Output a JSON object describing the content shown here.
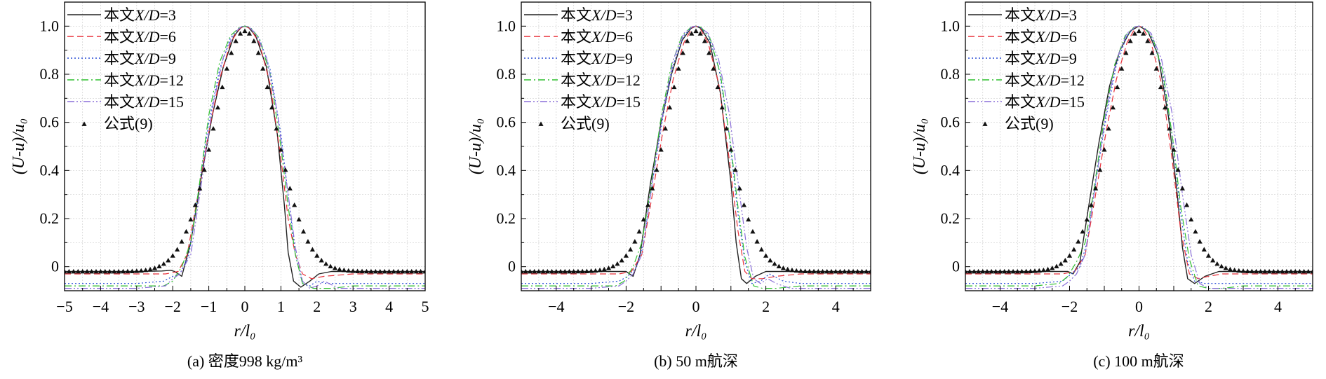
{
  "figure": {
    "legend_labels": [
      {
        "prefix": "本文",
        "var": "X/D",
        "eq": "=3",
        "line": "solid"
      },
      {
        "prefix": "本文",
        "var": "X/D",
        "eq": "=6",
        "line": "dashed"
      },
      {
        "prefix": "本文",
        "var": "X/D",
        "eq": "=9",
        "line": "dotted"
      },
      {
        "prefix": "本文",
        "var": "X/D",
        "eq": "=12",
        "line": "dashdot"
      },
      {
        "prefix": "本文",
        "var": "X/D",
        "eq": "=15",
        "line": "dashdotdot"
      },
      {
        "prefix": "公式(9)",
        "var": "",
        "eq": "",
        "line": "markers"
      }
    ],
    "colors": {
      "X/D=3": "#222222",
      "X/D=6": "#e8303a",
      "X/D=9": "#2a4fd6",
      "X/D=12": "#2fbf2f",
      "X/D=15": "#8a6fd8",
      "formula": "#111111",
      "grid": "#cfcfcf"
    }
  },
  "chart_data": [
    {
      "type": "line",
      "caption": "(a) 密度998 kg/m³",
      "xlabel": "r/l₀",
      "ylabel": "(U-u)/u₀",
      "xlim": [
        -5,
        5
      ],
      "ylim": [
        -0.1,
        1.1
      ],
      "xticks": [
        -5,
        -4,
        -3,
        -2,
        -1,
        0,
        1,
        2,
        3,
        4,
        5
      ],
      "yticks": [
        0,
        0.2,
        0.4,
        0.6,
        0.8,
        1.0
      ],
      "ytick_labels": [
        "0",
        "0.2",
        "0.4",
        "0.6",
        "0.8",
        "1.0"
      ],
      "grid": true,
      "legend_position": "top-left",
      "series": [
        {
          "name": "本文X/D=3",
          "x": [
            -5,
            -3,
            -2.3,
            -2.05,
            -1.95,
            -1.75,
            -1.5,
            -1.2,
            -0.9,
            -0.6,
            -0.3,
            -0.1,
            0,
            0.1,
            0.3,
            0.6,
            0.9,
            1.1,
            1.2,
            1.35,
            1.55,
            1.8,
            2.05,
            2.4,
            3,
            5
          ],
          "y": [
            -0.02,
            -0.02,
            -0.018,
            -0.015,
            -0.02,
            -0.04,
            0.1,
            0.38,
            0.63,
            0.83,
            0.96,
            0.995,
            1.0,
            0.995,
            0.96,
            0.83,
            0.55,
            0.25,
            0.06,
            -0.06,
            -0.085,
            -0.06,
            -0.03,
            -0.02,
            -0.02,
            -0.02
          ]
        },
        {
          "name": "本文X/D=6",
          "x": [
            -5,
            -3,
            -2.2,
            -1.85,
            -1.6,
            -1.3,
            -1.0,
            -0.7,
            -0.4,
            -0.15,
            0,
            0.15,
            0.4,
            0.7,
            1.0,
            1.2,
            1.4,
            1.6,
            1.85,
            2.2,
            3,
            5
          ],
          "y": [
            -0.03,
            -0.03,
            -0.03,
            -0.02,
            0.05,
            0.3,
            0.56,
            0.78,
            0.93,
            0.99,
            1.0,
            0.99,
            0.93,
            0.76,
            0.45,
            0.2,
            0.05,
            -0.03,
            -0.05,
            -0.04,
            -0.03,
            -0.03
          ]
        },
        {
          "name": "本文X/D=9",
          "x": [
            -5,
            -3,
            -2.25,
            -2.0,
            -1.8,
            -1.55,
            -1.3,
            -1.0,
            -0.7,
            -0.4,
            -0.15,
            0,
            0.15,
            0.4,
            0.7,
            1.0,
            1.2,
            1.4,
            1.6,
            1.8,
            2.0,
            2.25,
            3,
            5
          ],
          "y": [
            -0.07,
            -0.07,
            -0.06,
            -0.04,
            -0.03,
            0.05,
            0.3,
            0.6,
            0.82,
            0.95,
            0.995,
            1.0,
            0.995,
            0.95,
            0.82,
            0.55,
            0.3,
            0.05,
            -0.07,
            -0.08,
            -0.06,
            -0.07,
            -0.07,
            -0.07
          ]
        },
        {
          "name": "本文X/D=12",
          "x": [
            -5,
            -3,
            -2.25,
            -2.0,
            -1.75,
            -1.5,
            -1.3,
            -1.0,
            -0.7,
            -0.4,
            -0.15,
            0,
            0.15,
            0.4,
            0.7,
            1.0,
            1.2,
            1.4,
            1.6,
            1.9,
            2.4,
            3,
            5
          ],
          "y": [
            -0.08,
            -0.08,
            -0.08,
            -0.06,
            0.0,
            0.1,
            0.3,
            0.63,
            0.85,
            0.96,
            0.995,
            1.0,
            0.995,
            0.95,
            0.8,
            0.5,
            0.25,
            0.05,
            -0.07,
            -0.09,
            -0.09,
            -0.08,
            -0.08
          ]
        },
        {
          "name": "本文X/D=15",
          "x": [
            -5,
            -3,
            -2.2,
            -2.0,
            -1.8,
            -1.5,
            -1.2,
            -0.9,
            -0.6,
            -0.3,
            -0.1,
            0,
            0.1,
            0.3,
            0.6,
            0.9,
            1.2,
            1.4,
            1.6,
            1.8,
            2.0,
            2.2,
            2.6,
            3,
            5
          ],
          "y": [
            -0.09,
            -0.09,
            -0.08,
            -0.05,
            -0.03,
            0.05,
            0.35,
            0.66,
            0.87,
            0.97,
            0.998,
            1.0,
            0.998,
            0.97,
            0.87,
            0.64,
            0.3,
            0.08,
            -0.06,
            -0.09,
            -0.08,
            -0.06,
            -0.09,
            -0.09,
            -0.09
          ]
        },
        {
          "name": "公式(9)",
          "marker": "triangle",
          "formula": {
            "a": 0.68,
            "b": 0.02
          }
        }
      ]
    },
    {
      "type": "line",
      "caption": "(b) 50 m航深",
      "xlabel": "r/l₀",
      "ylabel": "(U-u)/u₀",
      "xlim": [
        -5,
        5
      ],
      "ylim": [
        -0.1,
        1.1
      ],
      "xticks": [
        -4,
        -2,
        0,
        2,
        4
      ],
      "yticks": [
        0,
        0.2,
        0.4,
        0.6,
        0.8,
        1.0
      ],
      "ytick_labels": [
        "0",
        "0.2",
        "0.4",
        "0.6",
        "0.8",
        "1.0"
      ],
      "grid": true,
      "legend_position": "top-left",
      "series": [
        {
          "name": "本文X/D=3",
          "x": [
            -5,
            -3,
            -2.3,
            -2.0,
            -1.8,
            -1.6,
            -1.3,
            -1.0,
            -0.7,
            -0.4,
            -0.15,
            0,
            0.15,
            0.4,
            0.7,
            1.0,
            1.15,
            1.3,
            1.45,
            1.7,
            2.0,
            2.4,
            3,
            5
          ],
          "y": [
            -0.02,
            -0.02,
            -0.02,
            -0.02,
            -0.04,
            0.05,
            0.35,
            0.6,
            0.8,
            0.94,
            0.99,
            1.0,
            0.99,
            0.93,
            0.72,
            0.35,
            0.1,
            -0.05,
            -0.07,
            -0.04,
            -0.02,
            -0.02,
            -0.02,
            -0.02
          ]
        },
        {
          "name": "本文X/D=6",
          "x": [
            -5,
            -3,
            -2.2,
            -1.85,
            -1.55,
            -1.25,
            -0.95,
            -0.65,
            -0.35,
            -0.1,
            0,
            0.1,
            0.35,
            0.65,
            0.95,
            1.2,
            1.4,
            1.6,
            1.9,
            2.3,
            3,
            5
          ],
          "y": [
            -0.03,
            -0.03,
            -0.03,
            -0.02,
            0.05,
            0.3,
            0.56,
            0.78,
            0.93,
            0.995,
            1.0,
            0.995,
            0.93,
            0.76,
            0.45,
            0.15,
            -0.02,
            -0.05,
            -0.05,
            -0.04,
            -0.03,
            -0.03
          ]
        },
        {
          "name": "本文X/D=9",
          "x": [
            -5,
            -3,
            -2.2,
            -1.95,
            -1.7,
            -1.5,
            -1.25,
            -0.95,
            -0.65,
            -0.35,
            -0.1,
            0,
            0.1,
            0.35,
            0.65,
            0.95,
            1.2,
            1.4,
            1.6,
            1.85,
            2.1,
            2.5,
            3,
            5
          ],
          "y": [
            -0.07,
            -0.07,
            -0.06,
            -0.04,
            0.0,
            0.1,
            0.35,
            0.62,
            0.84,
            0.96,
            0.998,
            1.0,
            0.998,
            0.96,
            0.83,
            0.55,
            0.22,
            0.02,
            -0.07,
            -0.06,
            -0.03,
            -0.06,
            -0.07,
            -0.07
          ]
        },
        {
          "name": "本文X/D=12",
          "x": [
            -5,
            -3,
            -2.3,
            -2.05,
            -1.8,
            -1.55,
            -1.3,
            -1.0,
            -0.7,
            -0.4,
            -0.15,
            0,
            0.15,
            0.4,
            0.7,
            1.0,
            1.2,
            1.4,
            1.65,
            1.9,
            2.3,
            3,
            5
          ],
          "y": [
            -0.08,
            -0.08,
            -0.08,
            -0.06,
            0.0,
            0.1,
            0.32,
            0.62,
            0.84,
            0.96,
            0.995,
            1.0,
            0.995,
            0.95,
            0.8,
            0.5,
            0.25,
            0.04,
            -0.08,
            -0.09,
            -0.09,
            -0.08,
            -0.08
          ]
        },
        {
          "name": "本文X/D=15",
          "x": [
            -5,
            -3,
            -2.2,
            -2.0,
            -1.8,
            -1.55,
            -1.25,
            -0.95,
            -0.65,
            -0.35,
            -0.1,
            0,
            0.1,
            0.35,
            0.65,
            0.95,
            1.25,
            1.45,
            1.65,
            1.85,
            2.05,
            2.3,
            2.7,
            3,
            5
          ],
          "y": [
            -0.09,
            -0.09,
            -0.08,
            -0.06,
            -0.03,
            0.05,
            0.35,
            0.64,
            0.86,
            0.97,
            0.998,
            1.0,
            0.998,
            0.97,
            0.86,
            0.64,
            0.3,
            0.08,
            -0.05,
            -0.07,
            -0.05,
            -0.07,
            -0.09,
            -0.09,
            -0.09
          ]
        },
        {
          "name": "公式(9)",
          "marker": "triangle",
          "formula": {
            "a": 0.68,
            "b": 0.02
          }
        }
      ]
    },
    {
      "type": "line",
      "caption": "(c) 100 m航深",
      "xlabel": "r/l₀",
      "ylabel": "(U-u)/u₀",
      "xlim": [
        -5,
        5
      ],
      "ylim": [
        -0.1,
        1.1
      ],
      "xticks": [
        -4,
        -2,
        0,
        2,
        4
      ],
      "yticks": [
        0,
        0.2,
        0.4,
        0.6,
        0.8,
        1.0
      ],
      "ytick_labels": [
        "0",
        "0.2",
        "0.4",
        "0.6",
        "0.8",
        "1.0"
      ],
      "grid": true,
      "legend_position": "top-left",
      "series": [
        {
          "name": "本文X/D=3",
          "x": [
            -5,
            -3,
            -2.3,
            -2.05,
            -1.9,
            -1.7,
            -1.45,
            -1.15,
            -0.85,
            -0.55,
            -0.25,
            0,
            0.25,
            0.55,
            0.85,
            1.1,
            1.25,
            1.4,
            1.6,
            1.9,
            2.3,
            3,
            5
          ],
          "y": [
            -0.02,
            -0.02,
            -0.02,
            -0.02,
            -0.03,
            0.02,
            0.25,
            0.52,
            0.75,
            0.9,
            0.98,
            1.0,
            0.98,
            0.88,
            0.62,
            0.3,
            0.08,
            -0.05,
            -0.07,
            -0.04,
            -0.02,
            -0.02,
            -0.02
          ]
        },
        {
          "name": "本文X/D=6",
          "x": [
            -5,
            -3,
            -2.2,
            -1.85,
            -1.55,
            -1.25,
            -0.95,
            -0.65,
            -0.35,
            -0.1,
            0,
            0.1,
            0.35,
            0.65,
            0.95,
            1.2,
            1.45,
            1.7,
            2.0,
            2.4,
            3,
            5
          ],
          "y": [
            -0.03,
            -0.03,
            -0.03,
            -0.02,
            0.05,
            0.3,
            0.56,
            0.78,
            0.93,
            0.995,
            1.0,
            0.995,
            0.93,
            0.76,
            0.45,
            0.15,
            -0.03,
            -0.05,
            -0.04,
            -0.03,
            -0.03,
            -0.03
          ]
        },
        {
          "name": "本文X/D=9",
          "x": [
            -5,
            -3,
            -2.2,
            -1.95,
            -1.7,
            -1.5,
            -1.25,
            -0.95,
            -0.65,
            -0.35,
            -0.1,
            0,
            0.1,
            0.35,
            0.65,
            0.95,
            1.2,
            1.4,
            1.6,
            1.9,
            2.3,
            3,
            5
          ],
          "y": [
            -0.07,
            -0.07,
            -0.06,
            -0.03,
            0.0,
            0.1,
            0.35,
            0.62,
            0.84,
            0.96,
            0.998,
            1.0,
            0.998,
            0.96,
            0.83,
            0.55,
            0.22,
            0.02,
            -0.06,
            -0.07,
            -0.07,
            -0.07,
            -0.07
          ]
        },
        {
          "name": "本文X/D=12",
          "x": [
            -5,
            -3,
            -2.3,
            -2.05,
            -1.8,
            -1.55,
            -1.3,
            -1.0,
            -0.7,
            -0.4,
            -0.15,
            0,
            0.15,
            0.4,
            0.7,
            1.0,
            1.2,
            1.45,
            1.7,
            2.0,
            2.4,
            3,
            5
          ],
          "y": [
            -0.08,
            -0.08,
            -0.07,
            -0.04,
            0.02,
            0.1,
            0.32,
            0.62,
            0.84,
            0.96,
            0.995,
            1.0,
            0.995,
            0.95,
            0.8,
            0.5,
            0.25,
            0.03,
            -0.08,
            -0.09,
            -0.09,
            -0.08,
            -0.08
          ]
        },
        {
          "name": "本文X/D=15",
          "x": [
            -5,
            -3,
            -2.2,
            -2.0,
            -1.8,
            -1.55,
            -1.25,
            -0.95,
            -0.65,
            -0.35,
            -0.1,
            0,
            0.1,
            0.35,
            0.65,
            0.95,
            1.25,
            1.5,
            1.75,
            2.0,
            2.4,
            3,
            5
          ],
          "y": [
            -0.09,
            -0.09,
            -0.08,
            -0.06,
            -0.03,
            0.05,
            0.35,
            0.64,
            0.86,
            0.97,
            0.998,
            1.0,
            0.998,
            0.97,
            0.86,
            0.64,
            0.3,
            0.05,
            -0.07,
            -0.09,
            -0.09,
            -0.09,
            -0.09
          ]
        },
        {
          "name": "公式(9)",
          "marker": "triangle",
          "formula": {
            "a": 0.68,
            "b": 0.02
          }
        }
      ]
    }
  ]
}
